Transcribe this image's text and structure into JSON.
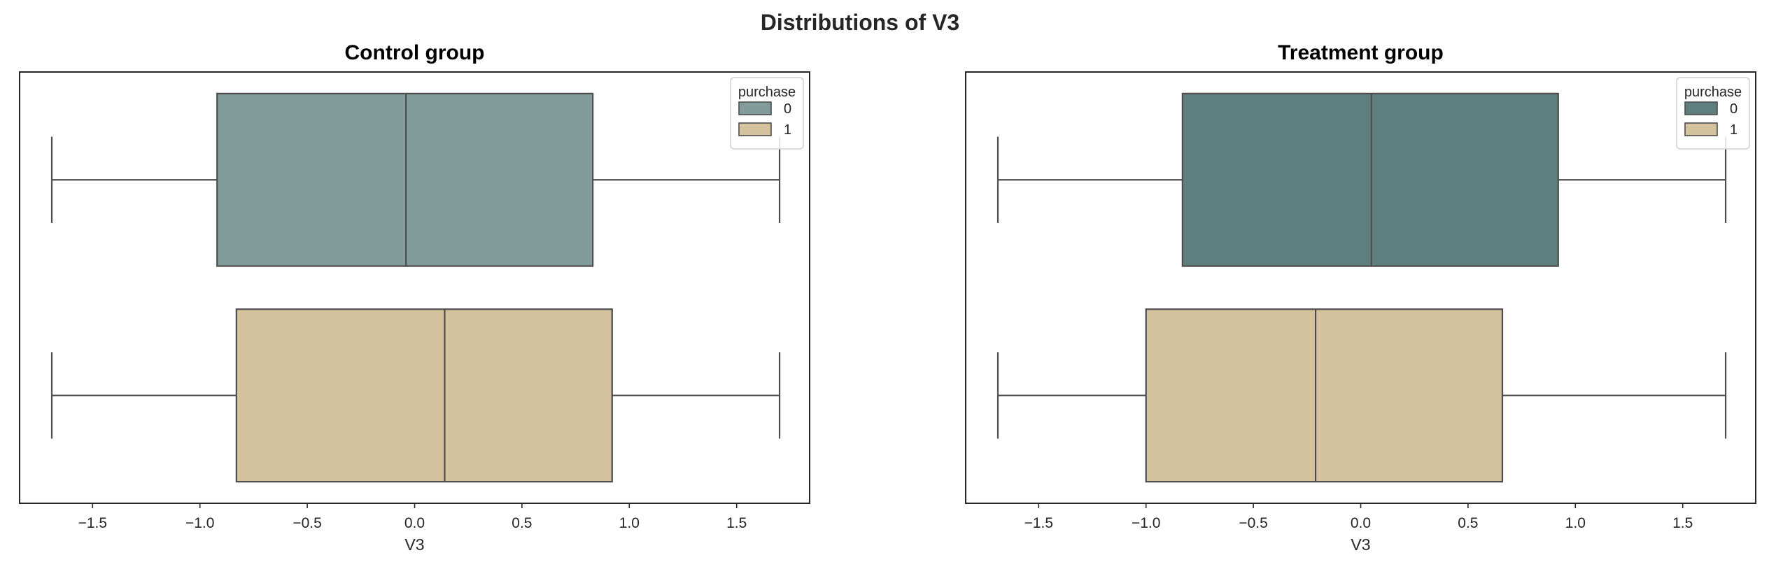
{
  "figure": {
    "suptitle": "Distributions of V3"
  },
  "chart_data": [
    {
      "type": "box",
      "orientation": "horizontal",
      "title": "Control group",
      "xlabel": "V3",
      "ylabel": "",
      "xlim": [
        -1.84,
        1.84
      ],
      "xticks": [
        -1.5,
        -1.0,
        -0.5,
        0.0,
        0.5,
        1.0,
        1.5
      ],
      "xtick_labels": [
        "−1.5",
        "−1.0",
        "−0.5",
        "0.0",
        "0.5",
        "1.0",
        "1.5"
      ],
      "grid": false,
      "legend": {
        "title": "purchase",
        "position": "top-right",
        "entries": [
          "0",
          "1"
        ]
      },
      "series": [
        {
          "name": "0",
          "color": "#819c9b",
          "whislo": -1.69,
          "q1": -0.92,
          "median": -0.04,
          "q3": 0.83,
          "whishi": 1.7
        },
        {
          "name": "1",
          "color": "#d4c19d",
          "whislo": -1.69,
          "q1": -0.83,
          "median": 0.14,
          "q3": 0.92,
          "whishi": 1.7
        }
      ]
    },
    {
      "type": "box",
      "orientation": "horizontal",
      "title": "Treatment group",
      "xlabel": "V3",
      "ylabel": "",
      "xlim": [
        -1.84,
        1.84
      ],
      "xticks": [
        -1.5,
        -1.0,
        -0.5,
        0.0,
        0.5,
        1.0,
        1.5
      ],
      "xtick_labels": [
        "−1.5",
        "−1.0",
        "−0.5",
        "0.0",
        "0.5",
        "1.0",
        "1.5"
      ],
      "grid": false,
      "legend": {
        "title": "purchase",
        "position": "top-right",
        "entries": [
          "0",
          "1"
        ]
      },
      "series": [
        {
          "name": "0",
          "color": "#5e7f7e",
          "whislo": -1.69,
          "q1": -0.83,
          "median": 0.05,
          "q3": 0.92,
          "whishi": 1.7
        },
        {
          "name": "1",
          "color": "#d4c19d",
          "whislo": -1.69,
          "q1": -1.0,
          "median": -0.21,
          "q3": 0.66,
          "whishi": 1.7
        }
      ]
    }
  ]
}
